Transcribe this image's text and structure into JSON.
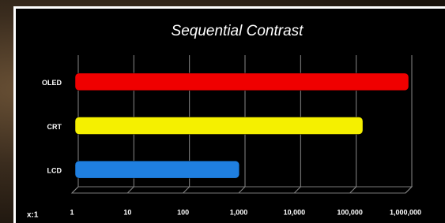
{
  "chart_data": {
    "type": "bar",
    "orientation": "horizontal",
    "title": "Sequential Contrast",
    "x_label": "x:1",
    "categories": [
      "LCD",
      "CRT",
      "OLED"
    ],
    "values": [
      900,
      150000,
      1000000
    ],
    "colors": [
      "#1f7fe0",
      "#f5f000",
      "#f00000"
    ],
    "xscale": "log",
    "xlim": [
      1,
      1000000
    ],
    "xticks": [
      1,
      10,
      100,
      {
        "value": 1000,
        "label": "1,000"
      },
      {
        "value": 10000,
        "label": "10,000"
      },
      {
        "value": 100000,
        "label": "100,000"
      },
      {
        "value": 1000000,
        "label": "1,000,000"
      }
    ],
    "grid": true
  }
}
